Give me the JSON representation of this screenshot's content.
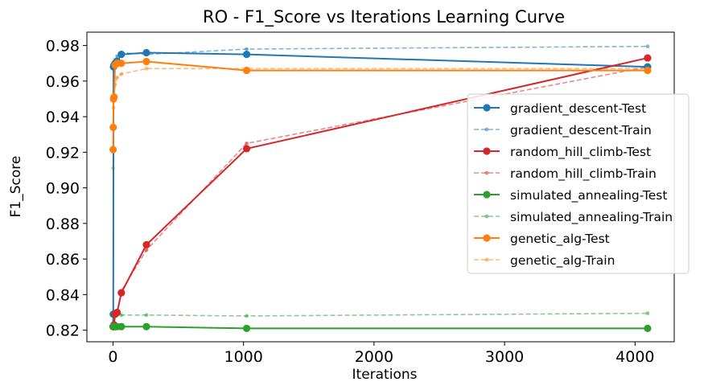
{
  "chart_data": {
    "type": "line",
    "title": "RO - F1_Score vs Iterations Learning Curve",
    "xlabel": "Iterations",
    "ylabel": "F1_Score",
    "xlim": [
      -200,
      4300
    ],
    "ylim": [
      0.8135,
      0.9875
    ],
    "xticks": [
      0,
      1000,
      2000,
      3000,
      4000
    ],
    "yticks": [
      0.82,
      0.84,
      0.86,
      0.88,
      0.9,
      0.92,
      0.94,
      0.96,
      0.98
    ],
    "xtick_labels": [
      "0",
      "1000",
      "2000",
      "3000",
      "4000"
    ],
    "ytick_labels": [
      "0.82",
      "0.84",
      "0.86",
      "0.88",
      "0.90",
      "0.92",
      "0.94",
      "0.96",
      "0.98"
    ],
    "grid": false,
    "legend_position": "center-right",
    "x": [
      1,
      2,
      4,
      8,
      16,
      32,
      64,
      256,
      1024,
      4096
    ],
    "series": [
      {
        "name": "gradient_descent-Test",
        "style": "solid",
        "marker": "large",
        "color": "#1f77b4",
        "values": [
          0.822,
          0.829,
          0.968,
          0.969,
          0.97,
          0.971,
          0.975,
          0.976,
          0.975,
          0.968
        ]
      },
      {
        "name": "gradient_descent-Train",
        "style": "dashed",
        "marker": "small",
        "color": "#1f77b4",
        "values": [
          0.822,
          0.829,
          0.968,
          0.97,
          0.972,
          0.974,
          0.976,
          0.975,
          0.978,
          0.9795
        ]
      },
      {
        "name": "random_hill_climb-Test",
        "style": "solid",
        "marker": "large",
        "color": "#d62728",
        "values": [
          0.822,
          0.822,
          0.822,
          0.823,
          0.829,
          0.83,
          0.841,
          0.868,
          0.922,
          0.973
        ]
      },
      {
        "name": "random_hill_climb-Train",
        "style": "dashed",
        "marker": "small",
        "color": "#d62728",
        "values": [
          0.8285,
          0.8285,
          0.8285,
          0.8285,
          0.8285,
          0.83,
          0.842,
          0.865,
          0.925,
          0.968
        ]
      },
      {
        "name": "simulated_annealing-Test",
        "style": "solid",
        "marker": "large",
        "color": "#2ca02c",
        "values": [
          0.822,
          0.822,
          0.822,
          0.822,
          0.822,
          0.822,
          0.822,
          0.822,
          0.821,
          0.821
        ]
      },
      {
        "name": "simulated_annealing-Train",
        "style": "dashed",
        "marker": "small",
        "color": "#2ca02c",
        "values": [
          0.8285,
          0.8285,
          0.8285,
          0.8285,
          0.8285,
          0.8285,
          0.8285,
          0.8285,
          0.828,
          0.8295
        ]
      },
      {
        "name": "genetic_alg-Test",
        "style": "solid",
        "marker": "large",
        "color": "#ff7f0e",
        "values": [
          0.9215,
          0.934,
          0.95,
          0.951,
          0.969,
          0.97,
          0.97,
          0.971,
          0.966,
          0.966
        ]
      },
      {
        "name": "genetic_alg-Train",
        "style": "dashed",
        "marker": "small",
        "color": "#ff7f0e",
        "values": [
          0.911,
          0.934,
          0.945,
          0.951,
          0.958,
          0.962,
          0.964,
          0.967,
          0.967,
          0.967
        ]
      }
    ]
  }
}
